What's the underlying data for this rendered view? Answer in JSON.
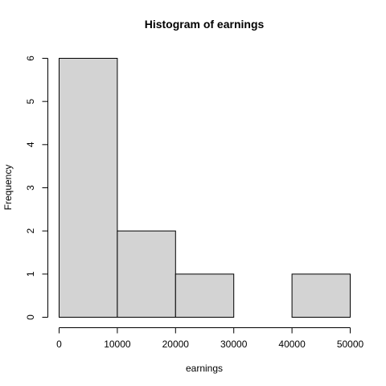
{
  "chart_data": {
    "type": "bar",
    "title": "Histogram of earnings",
    "xlabel": "earnings",
    "ylabel": "Frequency",
    "bins": [
      {
        "start": 0,
        "end": 10000,
        "count": 6
      },
      {
        "start": 10000,
        "end": 20000,
        "count": 2
      },
      {
        "start": 20000,
        "end": 30000,
        "count": 1
      },
      {
        "start": 30000,
        "end": 40000,
        "count": 0
      },
      {
        "start": 40000,
        "end": 50000,
        "count": 1
      }
    ],
    "xlim": [
      0,
      50000
    ],
    "ylim": [
      0,
      6
    ],
    "xticks": [
      "0",
      "10000",
      "20000",
      "30000",
      "40000",
      "50000"
    ],
    "yticks": [
      "0",
      "1",
      "2",
      "3",
      "4",
      "5",
      "6"
    ],
    "bar_color": "#d3d3d3",
    "edge_color": "#000000",
    "grid": false
  }
}
